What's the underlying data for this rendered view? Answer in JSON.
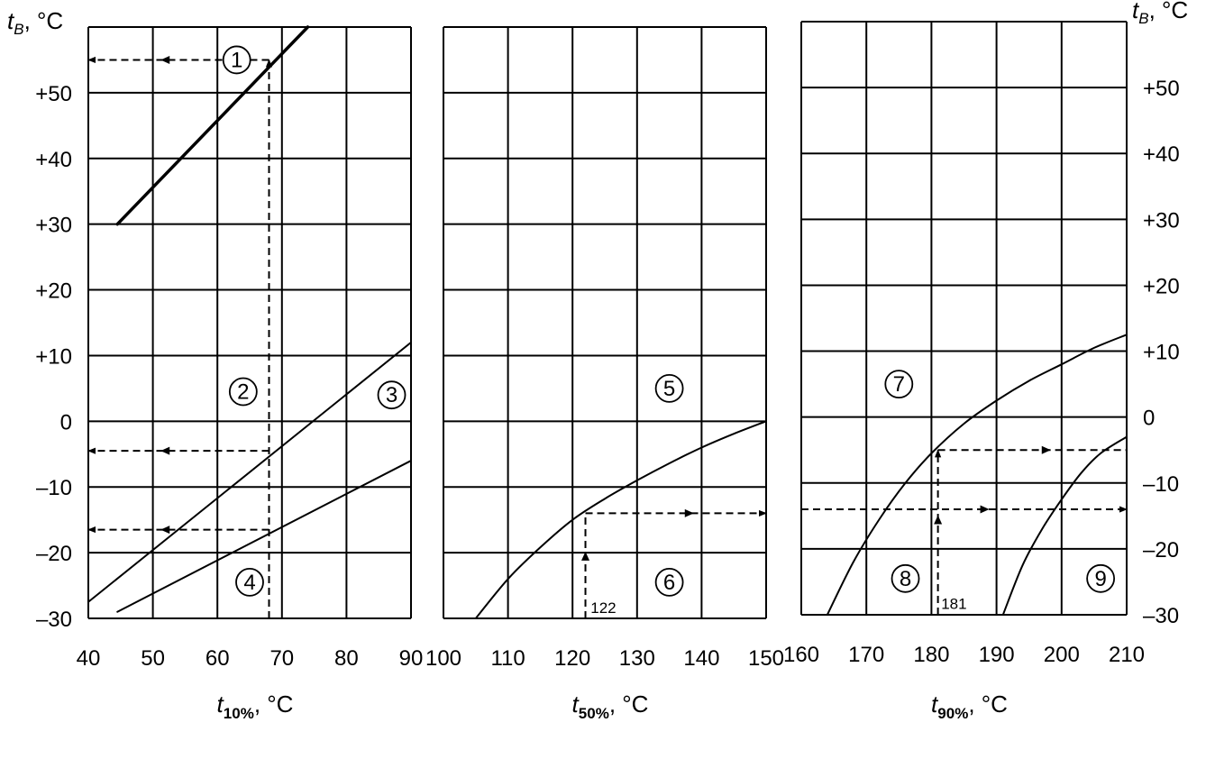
{
  "chart_data": [
    {
      "type": "line",
      "id": "left",
      "xlabel_main": "t",
      "xlabel_sub": "10%",
      "xlabel_unit": ", °C",
      "xlim": [
        40,
        90
      ],
      "xticks": [
        "40",
        "50",
        "60",
        "70",
        "80",
        "90"
      ],
      "ylim": [
        -30,
        60
      ],
      "ylabel_main": "t",
      "ylabel_sub": "B",
      "ylabel_unit": ", °C",
      "yticks": [
        {
          "v": -30,
          "t": "–30"
        },
        {
          "v": -20,
          "t": "–20"
        },
        {
          "v": -10,
          "t": "–10"
        },
        {
          "v": 0,
          "t": "0"
        },
        {
          "v": 10,
          "t": "+10"
        },
        {
          "v": 20,
          "t": "+20"
        },
        {
          "v": 30,
          "t": "+30"
        },
        {
          "v": 40,
          "t": "+40"
        },
        {
          "v": 50,
          "t": "+50"
        }
      ],
      "grid": true,
      "series": [
        {
          "width": 3.5,
          "x": [
            44.5,
            74
          ],
          "y": [
            30,
            60
          ]
        },
        {
          "width": 2,
          "x": [
            40,
            90
          ],
          "y": [
            -27.5,
            12
          ]
        },
        {
          "width": 2,
          "x": [
            44.5,
            90
          ],
          "y": [
            -29,
            -6
          ]
        }
      ],
      "guides": [
        {
          "x": [
            68,
            68
          ],
          "y": [
            -30,
            55
          ],
          "arrow": "end"
        },
        {
          "x": [
            68,
            40
          ],
          "y": [
            55,
            55
          ],
          "arrow": "mid-end"
        },
        {
          "x": [
            68,
            40
          ],
          "y": [
            -4.5,
            -4.5
          ],
          "arrow": "mid-end"
        },
        {
          "x": [
            68,
            40
          ],
          "y": [
            -16.5,
            -16.5
          ],
          "arrow": "mid-end"
        }
      ],
      "labels": [
        {
          "text": "1",
          "x": 63,
          "y": 55
        },
        {
          "text": "2",
          "x": 64,
          "y": 4.5
        },
        {
          "text": "3",
          "x": 87,
          "y": 4
        },
        {
          "text": "4",
          "x": 65,
          "y": -24.5
        }
      ]
    },
    {
      "type": "line",
      "id": "middle",
      "xlabel_main": "t",
      "xlabel_sub": "50%",
      "xlabel_unit": ", °C",
      "xlim": [
        100,
        150
      ],
      "xticks": [
        "100",
        "110",
        "120",
        "130",
        "140",
        "150"
      ],
      "ylim": [
        -30,
        60
      ],
      "grid": true,
      "series": [
        {
          "width": 2,
          "x": [
            105,
            110,
            115,
            120,
            125,
            130,
            135,
            140,
            145,
            150
          ],
          "y": [
            -30,
            -24,
            -19.2,
            -15,
            -11.8,
            -9,
            -6.4,
            -4,
            -1.9,
            0
          ]
        }
      ],
      "guides": [
        {
          "x": [
            122,
            122
          ],
          "y": [
            -30,
            -14
          ],
          "arrow": "mid"
        },
        {
          "x": [
            122,
            150
          ],
          "y": [
            -14,
            -14
          ],
          "arrow": "mid-end"
        }
      ],
      "labels": [
        {
          "text": "5",
          "x": 135,
          "y": 5
        },
        {
          "text": "6",
          "x": 135,
          "y": -24.5
        }
      ],
      "annotations": [
        {
          "text": "122",
          "x": 122.8,
          "y": -27.5
        }
      ]
    },
    {
      "type": "line",
      "id": "right",
      "xlabel_main": "t",
      "xlabel_sub": "90%",
      "xlabel_unit": ", °C",
      "xlim": [
        160,
        210
      ],
      "xticks": [
        "160",
        "170",
        "180",
        "190",
        "200",
        "210"
      ],
      "ylim": [
        -30,
        60
      ],
      "ylabel_main": "t",
      "ylabel_sub": "B",
      "ylabel_unit": ", °C",
      "yticks": [
        {
          "v": -30,
          "t": "–30"
        },
        {
          "v": -20,
          "t": "–20"
        },
        {
          "v": -10,
          "t": "–10"
        },
        {
          "v": 0,
          "t": "0"
        },
        {
          "v": 10,
          "t": "+10"
        },
        {
          "v": 20,
          "t": "+20"
        },
        {
          "v": 30,
          "t": "+30"
        },
        {
          "v": 40,
          "t": "+40"
        },
        {
          "v": 50,
          "t": "+50"
        }
      ],
      "grid": true,
      "series": [
        {
          "width": 2,
          "x": [
            164,
            168,
            172,
            176,
            180,
            185,
            190,
            195,
            200,
            205,
            210
          ],
          "y": [
            -30,
            -22,
            -15.5,
            -10,
            -5.5,
            -1,
            2.5,
            5.5,
            8,
            10.5,
            12.5
          ]
        },
        {
          "width": 2,
          "x": [
            191,
            194,
            197,
            200,
            203,
            206,
            210
          ],
          "y": [
            -30,
            -22.5,
            -17,
            -12.5,
            -8.5,
            -5.5,
            -3
          ]
        }
      ],
      "guides": [
        {
          "x": [
            181,
            181
          ],
          "y": [
            -30,
            -5
          ],
          "arrow": "mid-end"
        },
        {
          "x": [
            181,
            210
          ],
          "y": [
            -5,
            -5
          ],
          "arrow": "mid"
        },
        {
          "x": [
            160,
            210
          ],
          "y": [
            -14,
            -14
          ],
          "arrow": "mid-end"
        }
      ],
      "labels": [
        {
          "text": "7",
          "x": 175,
          "y": 5
        },
        {
          "text": "8",
          "x": 176,
          "y": -24.5
        },
        {
          "text": "9",
          "x": 206,
          "y": -24.5
        }
      ],
      "annotations": [
        {
          "text": "181",
          "x": 181.5,
          "y": -27.5
        }
      ]
    }
  ]
}
